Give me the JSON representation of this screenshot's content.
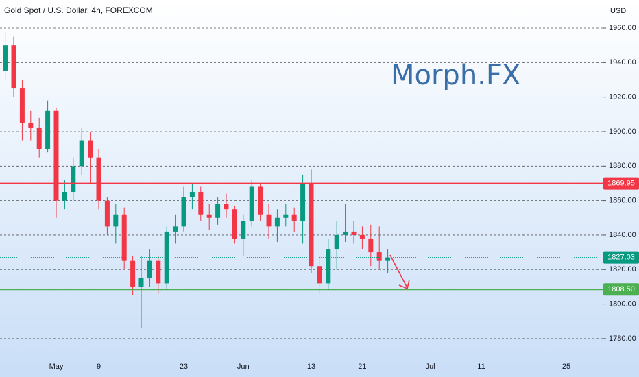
{
  "chart_data": {
    "type": "candlestick",
    "title": "Gold Spot / U.S. Dollar, 4h, FOREXCOM",
    "currency": "USD",
    "watermark": "Morph.FX",
    "up_color": "#089981",
    "down_color": "#f23645",
    "categories": [
      null,
      null,
      null,
      null,
      null,
      null,
      "May",
      null,
      null,
      null,
      null,
      "9",
      null,
      null,
      null,
      null,
      null,
      null,
      null,
      null,
      null,
      "23",
      null,
      null,
      null,
      null,
      null,
      null,
      "Jun",
      null,
      null,
      null,
      null,
      null,
      null,
      null,
      "13",
      null,
      null,
      null,
      null,
      null,
      "21",
      null,
      null,
      null,
      null,
      null,
      null,
      null,
      "Jul",
      null,
      null,
      null,
      null,
      null,
      "11",
      null,
      null,
      null,
      null,
      null,
      null,
      null,
      null,
      null,
      "25",
      null,
      null,
      null,
      null
    ],
    "open": [
      1935,
      1950,
      1925,
      1905,
      1902,
      1890,
      1912,
      1860,
      1865,
      1880,
      1895,
      1885,
      1860,
      1845,
      1852,
      1825,
      1810,
      1815,
      1825,
      1812,
      1842,
      1845,
      1862,
      1865,
      1852,
      1850,
      1858,
      1855,
      1838,
      1848,
      1868,
      1852,
      1845,
      1850,
      1852,
      1848,
      1870,
      1822,
      1812,
      1832,
      1840,
      1842,
      1840,
      1838,
      1830,
      1825,
      null,
      null,
      null,
      null,
      null,
      null,
      null,
      null,
      null,
      null,
      null,
      null,
      null,
      null,
      null,
      null,
      null,
      null,
      null,
      null,
      null,
      null,
      null,
      null,
      null
    ],
    "high": [
      1958,
      1955,
      1930,
      1912,
      1908,
      1918,
      1914,
      1872,
      1885,
      1902,
      1900,
      1890,
      1862,
      1858,
      1856,
      1828,
      1828,
      1832,
      1828,
      1845,
      1852,
      1868,
      1870,
      1868,
      1858,
      1862,
      1864,
      1857,
      1852,
      1872,
      1870,
      1858,
      1855,
      1858,
      1856,
      1875,
      1878,
      1828,
      1838,
      1848,
      1858,
      1848,
      1845,
      1846,
      1845,
      1832,
      null,
      null,
      null,
      null,
      null,
      null,
      null,
      null,
      null,
      null,
      null,
      null,
      null,
      null,
      null,
      null,
      null,
      null,
      null,
      null,
      null,
      null,
      null,
      null,
      null
    ],
    "low": [
      1930,
      1920,
      1895,
      1895,
      1885,
      1888,
      1850,
      1855,
      1860,
      1875,
      1870,
      1855,
      1840,
      1835,
      1820,
      1805,
      1786,
      1810,
      1806,
      1808,
      1835,
      1842,
      1855,
      1848,
      1843,
      1846,
      1850,
      1835,
      1828,
      1845,
      1848,
      1838,
      1836,
      1845,
      1842,
      1835,
      1818,
      1806,
      1808,
      1820,
      1836,
      1835,
      1832,
      1822,
      1820,
      1818,
      null,
      null,
      null,
      null,
      null,
      null,
      null,
      null,
      null,
      null,
      null,
      null,
      null,
      null,
      null,
      null,
      null,
      null,
      null,
      null,
      null,
      null,
      null,
      null,
      null
    ],
    "close": [
      1950,
      1925,
      1905,
      1902,
      1890,
      1912,
      1860,
      1865,
      1880,
      1895,
      1885,
      1860,
      1845,
      1852,
      1825,
      1810,
      1815,
      1825,
      1812,
      1842,
      1845,
      1862,
      1865,
      1852,
      1850,
      1858,
      1855,
      1838,
      1848,
      1868,
      1852,
      1845,
      1850,
      1852,
      1848,
      1870,
      1822,
      1812,
      1832,
      1840,
      1842,
      1840,
      1838,
      1830,
      1825,
      1827.03,
      null,
      null,
      null,
      null,
      null,
      null,
      null,
      null,
      null,
      null,
      null,
      null,
      null,
      null,
      null,
      null,
      null,
      null,
      null,
      null,
      null,
      null,
      null,
      null,
      null
    ],
    "ylim": [
      1773.6,
      1976.3
    ],
    "yticks": [
      {
        "value": 1780,
        "label": "1780.00"
      },
      {
        "value": 1800,
        "label": "1800.00"
      },
      {
        "value": 1820,
        "label": "1820.00"
      },
      {
        "value": 1840,
        "label": "1840.00"
      },
      {
        "value": 1860,
        "label": "1860.00"
      },
      {
        "value": 1880,
        "label": "1880.00"
      },
      {
        "value": 1900,
        "label": "1900.00"
      },
      {
        "value": 1920,
        "label": "1920.00"
      },
      {
        "value": 1940,
        "label": "1940.00"
      },
      {
        "value": 1960,
        "label": "1960.00"
      }
    ],
    "grid": true,
    "levels": [
      {
        "value": 1869.95,
        "color": "#f23645"
      },
      {
        "value": 1808.5,
        "label": "1808.50",
        "color": "#4caf50"
      }
    ]
  }
}
